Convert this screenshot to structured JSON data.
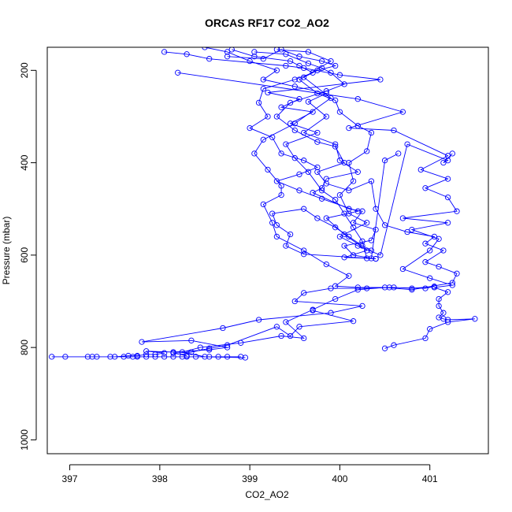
{
  "chart_data": {
    "type": "line",
    "title": "ORCAS RF17 CO2_AO2",
    "xlabel": "CO2_AO2",
    "ylabel": "Pressure (mbar)",
    "xlim": [
      396.75,
      401.65
    ],
    "ylim": [
      1030,
      150
    ],
    "y_reversed": true,
    "xticks": [
      397,
      398,
      399,
      400,
      401
    ],
    "yticks": [
      200,
      400,
      600,
      800,
      1000
    ],
    "grid": false,
    "legend": "none",
    "marker": "open-circle",
    "color": "#0000ff",
    "series": [
      {
        "points": [
          [
            398.2,
            205
          ],
          [
            400.2,
            262
          ],
          [
            400.7,
            290
          ],
          [
            400.1,
            325
          ],
          [
            400.6,
            330
          ],
          [
            401.2,
            385
          ],
          [
            400.9,
            415
          ],
          [
            401.2,
            435
          ],
          [
            400.95,
            455
          ],
          [
            401.2,
            475
          ],
          [
            401.3,
            505
          ],
          [
            400.7,
            520
          ],
          [
            401.2,
            530
          ],
          [
            400.8,
            545
          ],
          [
            401.1,
            565
          ],
          [
            401.0,
            590
          ],
          [
            400.7,
            630
          ],
          [
            401.0,
            650
          ],
          [
            401.25,
            665
          ],
          [
            401.05,
            670
          ],
          [
            401.2,
            680
          ],
          [
            401.1,
            695
          ],
          [
            401.1,
            710
          ],
          [
            401.15,
            725
          ],
          [
            401.1,
            735
          ],
          [
            401.15,
            738
          ],
          [
            401.2,
            740
          ],
          [
            401.5,
            738
          ],
          [
            401.2,
            745
          ],
          [
            401.0,
            760
          ],
          [
            400.95,
            780
          ],
          [
            400.6,
            795
          ],
          [
            400.5,
            802
          ]
        ]
      },
      {
        "points": [
          [
            398.9,
            820
          ],
          [
            398.75,
            820
          ],
          [
            398.65,
            820
          ],
          [
            398.55,
            820
          ],
          [
            398.4,
            820
          ],
          [
            398.3,
            820
          ],
          [
            398.25,
            820
          ],
          [
            398.15,
            820
          ],
          [
            398.05,
            820
          ],
          [
            397.95,
            820
          ],
          [
            397.85,
            820
          ],
          [
            397.75,
            820
          ],
          [
            397.7,
            820
          ],
          [
            397.6,
            820
          ],
          [
            397.45,
            820
          ],
          [
            397.3,
            820
          ],
          [
            397.2,
            820
          ],
          [
            396.95,
            820
          ],
          [
            396.8,
            820
          ],
          [
            397.25,
            820
          ],
          [
            397.5,
            820
          ],
          [
            397.65,
            818
          ],
          [
            397.75,
            818
          ],
          [
            397.85,
            815
          ],
          [
            397.95,
            815
          ],
          [
            398.05,
            812
          ],
          [
            397.85,
            808
          ],
          [
            398.15,
            810
          ],
          [
            398.55,
            805
          ],
          [
            398.75,
            800
          ],
          [
            398.35,
            785
          ],
          [
            397.8,
            788
          ],
          [
            398.7,
            758
          ],
          [
            399.1,
            740
          ],
          [
            399.9,
            725
          ],
          [
            400.25,
            710
          ],
          [
            399.5,
            700
          ],
          [
            399.6,
            682
          ],
          [
            399.9,
            672
          ],
          [
            400.3,
            672
          ],
          [
            400.6,
            670
          ],
          [
            400.8,
            672
          ],
          [
            401.05,
            668
          ],
          [
            400.95,
            672
          ],
          [
            400.55,
            670
          ],
          [
            400.2,
            670
          ],
          [
            399.95,
            667
          ],
          [
            400.1,
            645
          ],
          [
            399.85,
            620
          ],
          [
            399.6,
            590
          ],
          [
            399.3,
            560
          ],
          [
            399.25,
            530
          ],
          [
            399.15,
            490
          ],
          [
            399.35,
            470
          ],
          [
            399.35,
            450
          ],
          [
            399.2,
            415
          ],
          [
            399.05,
            380
          ],
          [
            399.15,
            350
          ],
          [
            399.5,
            315
          ],
          [
            399.9,
            260
          ],
          [
            399.6,
            215
          ],
          [
            399.9,
            180
          ],
          [
            399.65,
            160
          ],
          [
            399.3,
            155
          ]
        ]
      },
      {
        "points": [
          [
            398.05,
            160
          ],
          [
            398.3,
            165
          ],
          [
            398.55,
            175
          ],
          [
            399.4,
            190
          ],
          [
            399.6,
            195
          ],
          [
            400.0,
            210
          ],
          [
            400.45,
            220
          ],
          [
            399.2,
            248
          ],
          [
            399.55,
            262
          ],
          [
            399.35,
            280
          ],
          [
            399.7,
            290
          ],
          [
            399.45,
            315
          ],
          [
            399.75,
            335
          ],
          [
            399.4,
            360
          ],
          [
            399.5,
            390
          ],
          [
            399.65,
            420
          ],
          [
            399.8,
            460
          ],
          [
            399.95,
            480
          ],
          [
            400.05,
            510
          ],
          [
            400.15,
            540
          ],
          [
            400.25,
            570
          ],
          [
            400.3,
            607
          ],
          [
            400.4,
            608
          ],
          [
            399.6,
            598
          ],
          [
            399.4,
            580
          ],
          [
            399.45,
            555
          ],
          [
            399.3,
            535
          ],
          [
            399.25,
            510
          ],
          [
            399.6,
            500
          ],
          [
            399.75,
            520
          ],
          [
            399.95,
            540
          ],
          [
            400.1,
            560
          ],
          [
            400.25,
            580
          ],
          [
            400.35,
            590
          ]
        ]
      },
      {
        "points": [
          [
            398.5,
            150
          ],
          [
            398.75,
            160
          ],
          [
            399.0,
            180
          ],
          [
            399.3,
            200
          ],
          [
            399.15,
            220
          ],
          [
            399.5,
            235
          ],
          [
            399.85,
            250
          ],
          [
            399.65,
            268
          ],
          [
            399.85,
            300
          ],
          [
            399.6,
            335
          ],
          [
            399.95,
            360
          ],
          [
            400.0,
            395
          ],
          [
            400.2,
            420
          ],
          [
            399.85,
            435
          ],
          [
            399.8,
            455
          ],
          [
            399.7,
            465
          ],
          [
            400.1,
            500
          ],
          [
            400.25,
            505
          ],
          [
            400.15,
            530
          ],
          [
            400.4,
            545
          ],
          [
            400.35,
            568
          ],
          [
            400.05,
            580
          ],
          [
            400.15,
            600
          ],
          [
            400.4,
            608
          ]
        ]
      },
      {
        "points": [
          [
            398.8,
            155
          ],
          [
            399.05,
            170
          ],
          [
            399.45,
            180
          ],
          [
            399.55,
            190
          ],
          [
            399.7,
            205
          ],
          [
            399.5,
            220
          ],
          [
            399.15,
            240
          ],
          [
            399.1,
            270
          ],
          [
            399.2,
            300
          ],
          [
            399.0,
            325
          ],
          [
            399.25,
            345
          ],
          [
            399.35,
            380
          ],
          [
            399.6,
            395
          ],
          [
            399.75,
            410
          ],
          [
            399.55,
            425
          ],
          [
            399.3,
            440
          ],
          [
            399.55,
            460
          ],
          [
            399.8,
            478
          ],
          [
            400.2,
            505
          ],
          [
            399.85,
            520
          ],
          [
            400.05,
            555
          ],
          [
            400.3,
            590
          ],
          [
            400.05,
            605
          ],
          [
            400.35,
            607
          ],
          [
            400.5,
            395
          ],
          [
            400.65,
            380
          ]
        ]
      },
      {
        "points": [
          [
            398.75,
            170
          ],
          [
            399.15,
            175
          ],
          [
            399.35,
            155
          ],
          [
            399.55,
            170
          ],
          [
            399.8,
            180
          ],
          [
            399.95,
            190
          ],
          [
            399.75,
            200
          ],
          [
            399.55,
            220
          ],
          [
            399.75,
            250
          ],
          [
            399.95,
            265
          ],
          [
            400.0,
            290
          ],
          [
            400.2,
            320
          ],
          [
            400.35,
            335
          ],
          [
            400.3,
            375
          ],
          [
            400.1,
            400
          ],
          [
            400.15,
            440
          ],
          [
            400.0,
            470
          ],
          [
            400.1,
            510
          ],
          [
            400.3,
            530
          ],
          [
            400.0,
            560
          ],
          [
            400.2,
            580
          ],
          [
            400.45,
            600
          ],
          [
            400.75,
            360
          ],
          [
            401.2,
            395
          ],
          [
            401.15,
            400
          ],
          [
            401.25,
            380
          ]
        ]
      },
      {
        "points": [
          [
            399.05,
            160
          ],
          [
            399.4,
            165
          ],
          [
            399.65,
            185
          ],
          [
            399.8,
            195
          ],
          [
            399.9,
            205
          ],
          [
            400.05,
            230
          ],
          [
            399.85,
            245
          ],
          [
            399.45,
            270
          ],
          [
            399.3,
            300
          ],
          [
            399.5,
            330
          ],
          [
            399.75,
            355
          ],
          [
            399.95,
            365
          ],
          [
            400.05,
            400
          ],
          [
            399.75,
            420
          ],
          [
            399.85,
            445
          ],
          [
            400.1,
            460
          ],
          [
            400.35,
            440
          ],
          [
            400.4,
            500
          ],
          [
            400.5,
            535
          ],
          [
            400.75,
            550
          ],
          [
            401.05,
            560
          ],
          [
            400.95,
            575
          ],
          [
            401.15,
            590
          ],
          [
            400.95,
            615
          ],
          [
            401.1,
            625
          ],
          [
            401.3,
            640
          ],
          [
            401.25,
            660
          ],
          [
            400.8,
            675
          ],
          [
            400.5,
            670
          ],
          [
            400.2,
            675
          ],
          [
            399.95,
            695
          ],
          [
            399.7,
            718
          ],
          [
            399.4,
            745
          ],
          [
            399.6,
            780
          ],
          [
            399.35,
            775
          ],
          [
            398.9,
            790
          ],
          [
            398.45,
            800
          ],
          [
            398.25,
            810
          ],
          [
            398.5,
            820
          ],
          [
            398.95,
            822
          ]
        ]
      },
      {
        "points": [
          [
            399.7,
            720
          ],
          [
            400.15,
            743
          ],
          [
            399.55,
            755
          ],
          [
            399.45,
            775
          ],
          [
            399.3,
            755
          ],
          [
            398.75,
            795
          ],
          [
            398.55,
            802
          ],
          [
            398.35,
            810
          ],
          [
            398.15,
            812
          ],
          [
            398.3,
            818
          ]
        ]
      }
    ]
  }
}
